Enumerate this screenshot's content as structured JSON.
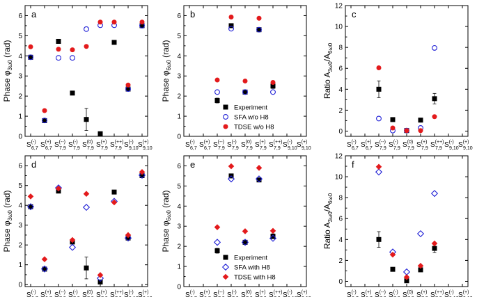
{
  "figure": {
    "colors": {
      "experiment": "#000000",
      "sfa": "#1f1fd6",
      "tdse": "#e31a1c"
    },
    "sublabels": {
      "base": "S",
      "bases": [
        "6,7",
        "6,7",
        "7,9",
        "7,9",
        "7,9",
        "7,9",
        "7,9",
        "9,10",
        "9,10"
      ]
    }
  },
  "chart_data": [
    {
      "id": "a",
      "type": "scatter",
      "panel_label": "a",
      "ylabel": "Phase φ3ω0 (rad)",
      "ylim": [
        0,
        6.5
      ],
      "yticks": [
        0,
        1,
        2,
        3,
        4,
        5,
        6
      ],
      "categories": [
        "S(-)6,7",
        "S(+)6,7",
        "S(--)7,9",
        "S(-)7,9",
        "S(0)7,9",
        "S(+)7,9",
        "S(++)7,9",
        "S(-)9,10",
        "S(+)9,10"
      ],
      "tick_sups": [
        "(-)",
        "(+)",
        "(--)",
        "(-)",
        "(0)",
        "(+)",
        "(++)",
        "(-)",
        "(+)"
      ],
      "tick_subs": [
        "6,7",
        "6,7",
        "7,9",
        "7,9",
        "7,9",
        "7,9",
        "7,9",
        "9,10",
        "9,10"
      ],
      "series": [
        {
          "name": "Experiment",
          "marker": "square",
          "values": [
            3.93,
            0.78,
            4.72,
            2.15,
            0.84,
            0.13,
            4.67,
            2.35,
            5.5
          ],
          "errors": [
            0,
            0,
            0,
            0,
            0.55,
            0,
            0,
            0,
            0
          ]
        },
        {
          "name": "SFA w/o H8",
          "marker": "circle",
          "values": [
            3.93,
            0.79,
            3.9,
            3.9,
            5.33,
            5.52,
            5.52,
            2.35,
            5.5
          ]
        },
        {
          "name": "TDSE w/o H8",
          "marker": "dot",
          "values": [
            4.45,
            1.28,
            4.33,
            4.3,
            4.47,
            5.68,
            5.68,
            2.55,
            5.68
          ]
        }
      ]
    },
    {
      "id": "b",
      "type": "scatter",
      "panel_label": "b",
      "ylabel": "Phase φ6ω0 (rad)",
      "ylim": [
        0,
        6.5
      ],
      "yticks": [
        0,
        1,
        2,
        3,
        4,
        5,
        6
      ],
      "categories": [
        "S(-)6,7",
        "S(+)6,7",
        "S(--)7,9",
        "S(-)7,9",
        "S(0)7,9",
        "S(+)7,9",
        "S(++)7,9",
        "S(-)9,10",
        "S(+)9,10"
      ],
      "tick_sups": [
        "(-)",
        "(+)",
        "(--)",
        "(-)",
        "(0)",
        "(+)",
        "(++)",
        "(-)",
        "(+)"
      ],
      "tick_subs": [
        "6,7",
        "6,7",
        "7,9",
        "7,9",
        "7,9",
        "7,9",
        "7,9",
        "9,10",
        "9,10"
      ],
      "legend": [
        "Experiment",
        "SFA w/o H8",
        "TDSE w/o H8"
      ],
      "series": [
        {
          "name": "Experiment",
          "marker": "square",
          "values": [
            null,
            null,
            1.78,
            5.5,
            2.2,
            5.3,
            2.5,
            null,
            null
          ],
          "errors": [
            0,
            0,
            0.12,
            0,
            0,
            0,
            0.12,
            0,
            0
          ]
        },
        {
          "name": "SFA w/o H8",
          "marker": "circle",
          "values": [
            null,
            null,
            2.2,
            5.35,
            2.2,
            5.3,
            2.2,
            null,
            null
          ]
        },
        {
          "name": "TDSE w/o H8",
          "marker": "dot",
          "values": [
            null,
            null,
            2.8,
            5.93,
            2.75,
            5.87,
            2.68,
            null,
            null
          ]
        }
      ]
    },
    {
      "id": "c",
      "type": "scatter",
      "panel_label": "c",
      "ylabel": "Ratio A3ω0/A6ω0",
      "ylim": [
        -0.5,
        12
      ],
      "yticks": [
        0,
        2,
        4,
        6,
        8,
        10,
        12
      ],
      "categories": [
        "S(-)6,7",
        "S(+)6,7",
        "S(--)7,9",
        "S(-)7,9",
        "S(0)7,9",
        "S(+)7,9",
        "S(++)7,9",
        "S(-)9,10",
        "S(+)9,10"
      ],
      "tick_sups": [
        "(-)",
        "(+)",
        "(--)",
        "(-)",
        "(0)",
        "(+)",
        "(++)",
        "(-)",
        "(+)"
      ],
      "tick_subs": [
        "6,7",
        "6,7",
        "7,9",
        "7,9",
        "7,9",
        "7,9",
        "7,9",
        "9,10",
        "9,10"
      ],
      "series": [
        {
          "name": "Experiment",
          "marker": "square",
          "values": [
            null,
            null,
            4.0,
            1.1,
            0.05,
            1.05,
            3.1,
            null,
            null
          ],
          "errors": [
            0,
            0,
            0.8,
            0,
            0,
            0,
            0.5,
            0,
            0
          ]
        },
        {
          "name": "SFA w/o H8",
          "marker": "circle",
          "values": [
            null,
            null,
            1.2,
            0.05,
            0.05,
            0.3,
            7.95,
            null,
            null
          ]
        },
        {
          "name": "TDSE w/o H8",
          "marker": "dot",
          "values": [
            null,
            null,
            6.05,
            0.3,
            0.05,
            0.05,
            1.38,
            null,
            null
          ]
        }
      ]
    },
    {
      "id": "d",
      "type": "scatter",
      "panel_label": "d",
      "ylabel": "Phase φ3ω0 (rad)",
      "ylim": [
        -0.1,
        6.5
      ],
      "yticks": [
        0,
        1,
        2,
        3,
        4,
        5,
        6
      ],
      "categories": [
        "S(-)6,7",
        "S(+)6,7",
        "S(--)7,9",
        "S(-)7,9",
        "S(0)7,9",
        "S(+)7,9",
        "S(++)7,9",
        "S(-)9,10",
        "S(+)9,10"
      ],
      "tick_sups": [
        "(-)",
        "(+)",
        "(--)",
        "(-)",
        "(0)",
        "(+)",
        "(++)",
        "(-)",
        "(+)"
      ],
      "tick_subs": [
        "6,7",
        "6,7",
        "7,9",
        "7,9",
        "7,9",
        "7,9",
        "7,9",
        "9,10",
        "9,10"
      ],
      "series": [
        {
          "name": "Experiment",
          "marker": "square",
          "values": [
            3.93,
            0.78,
            4.72,
            2.15,
            0.84,
            0.13,
            4.67,
            2.35,
            5.5
          ],
          "errors": [
            0,
            0,
            0,
            0,
            0.55,
            0,
            0,
            0,
            0
          ]
        },
        {
          "name": "SFA with H8",
          "marker": "diamond-open",
          "values": [
            3.93,
            0.79,
            4.88,
            1.88,
            3.9,
            0.32,
            4.2,
            2.35,
            5.52
          ]
        },
        {
          "name": "TDSE with H8",
          "marker": "diamond",
          "values": [
            4.45,
            1.28,
            4.85,
            2.25,
            4.58,
            0.48,
            4.15,
            2.5,
            5.68
          ]
        }
      ]
    },
    {
      "id": "e",
      "type": "scatter",
      "panel_label": "e",
      "ylabel": "Phase φ6ω0 (rad)",
      "ylim": [
        0,
        6.5
      ],
      "yticks": [
        0,
        1,
        2,
        3,
        4,
        5,
        6
      ],
      "categories": [
        "S(-)6,7",
        "S(+)6,7",
        "S(--)7,9",
        "S(-)7,9",
        "S(0)7,9",
        "S(+)7,9",
        "S(++)7,9",
        "S(-)9,10",
        "S(+)9,10"
      ],
      "tick_sups": [
        "(-)",
        "(+)",
        "(--)",
        "(-)",
        "(0)",
        "(+)",
        "(++)",
        "(-)",
        "(+)"
      ],
      "tick_subs": [
        "6,7",
        "6,7",
        "7,9",
        "7,9",
        "7,9",
        "7,9",
        "7,9",
        "9,10",
        "9,10"
      ],
      "legend": [
        "Experiment",
        "SFA with H8",
        "TDSE with H8"
      ],
      "series": [
        {
          "name": "Experiment",
          "marker": "square",
          "values": [
            null,
            null,
            1.78,
            5.5,
            2.2,
            5.3,
            2.5,
            null,
            null
          ],
          "errors": [
            0,
            0,
            0.12,
            0,
            0,
            0,
            0.12,
            0,
            0
          ]
        },
        {
          "name": "SFA with H8",
          "marker": "diamond-open",
          "values": [
            null,
            null,
            2.2,
            5.35,
            2.2,
            5.35,
            2.4,
            null,
            null
          ]
        },
        {
          "name": "TDSE with H8",
          "marker": "diamond",
          "values": [
            null,
            null,
            2.95,
            5.98,
            2.75,
            5.9,
            2.77,
            null,
            null
          ]
        }
      ]
    },
    {
      "id": "f",
      "type": "scatter",
      "panel_label": "f",
      "ylabel": "Ratio A3ω0/A6ω0",
      "ylim": [
        -0.5,
        12
      ],
      "yticks": [
        0,
        2,
        4,
        6,
        8,
        10,
        12
      ],
      "categories": [
        "S(-)6,7",
        "S(+)6,7",
        "S(--)7,9",
        "S(-)7,9",
        "S(0)7,9",
        "S(+)7,9",
        "S(++)7,9",
        "S(-)9,10",
        "S(+)9,10"
      ],
      "tick_sups": [
        "(-)",
        "(+)",
        "(--)",
        "(-)",
        "(0)",
        "(+)",
        "(++)",
        "(-)",
        "(+)"
      ],
      "tick_subs": [
        "6,7",
        "6,7",
        "7,9",
        "7,9",
        "7,9",
        "7,9",
        "7,9",
        "9,10",
        "9,10"
      ],
      "series": [
        {
          "name": "Experiment",
          "marker": "square",
          "values": [
            null,
            null,
            4.0,
            1.15,
            0.05,
            1.1,
            3.15,
            null,
            null
          ],
          "errors": [
            0,
            0,
            0.75,
            0,
            0,
            0,
            0.4,
            0,
            0
          ]
        },
        {
          "name": "SFA with H8",
          "marker": "diamond-open",
          "values": [
            null,
            null,
            10.45,
            2.8,
            0.9,
            4.55,
            8.4,
            null,
            null
          ]
        },
        {
          "name": "TDSE with H8",
          "marker": "diamond",
          "values": [
            null,
            null,
            10.95,
            2.55,
            0.4,
            1.48,
            3.62,
            null,
            null
          ]
        }
      ]
    }
  ]
}
